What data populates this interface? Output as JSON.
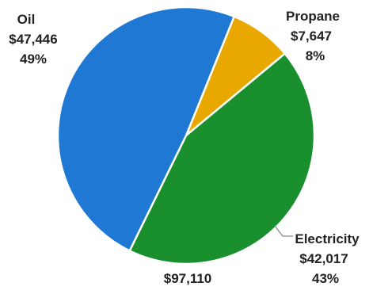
{
  "chart_data": {
    "type": "pie",
    "slices": [
      {
        "name": "Oil",
        "value": 47446,
        "value_label": "$47,446",
        "pct_label": "49%",
        "color": "#1F78D3"
      },
      {
        "name": "Propane",
        "value": 7647,
        "value_label": "$7,647",
        "pct_label": "8%",
        "color": "#E8A800"
      },
      {
        "name": "Electricity",
        "value": 42017,
        "value_label": "$42,017",
        "pct_label": "43%",
        "color": "#1A8F2E"
      }
    ],
    "total_label": "$97,110"
  }
}
